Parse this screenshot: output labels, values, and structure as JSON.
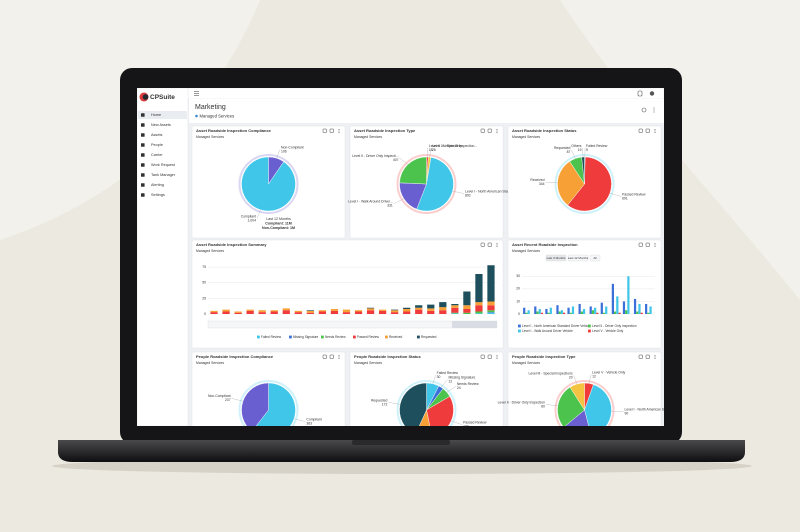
{
  "app": {
    "logo": "CPSuite",
    "nav": [
      "Home",
      "New Assets",
      "Assets",
      "People",
      "Carrier",
      "Work Request",
      "Tank Manager",
      "Alerting",
      "Settings"
    ]
  },
  "header": {
    "title": "Marketing",
    "subtitle": "Managed Services"
  },
  "widgets": [
    {
      "title": "Asset Roadside Inspection Compliance",
      "subtitle": "Managed Services",
      "chart_data": {
        "type": "pie",
        "categories": [
          "Non-Compliant",
          "Compliant"
        ],
        "values": [
          106,
          1004
        ],
        "value_labels": [
          "106",
          "1,004"
        ],
        "colors": [
          "#6a5fd0",
          "#3fc6e8"
        ],
        "annotations": [
          "Last 12 Months",
          "Compliant: 11M",
          "Non-Compliant: 1M"
        ]
      }
    },
    {
      "title": "Asset Roadside Inspection Type",
      "subtitle": "Managed Services",
      "chart_data": {
        "type": "pie",
        "categories": [
          "Level V - Vehicle Only",
          "Level III - Special Inspection...",
          "Level I - North American Standard...",
          "Level I - Walk Around Driver...",
          "Level II - Driver Only Inspecti..."
        ],
        "values": [
          18,
          26,
          892,
          331,
          407
        ],
        "colors": [
          "#ef3b3b",
          "#f5c342",
          "#3fc6e8",
          "#6a5fd0",
          "#4cc34c"
        ]
      }
    },
    {
      "title": "Asset Roadside Inspection Status",
      "subtitle": "Managed Services",
      "chart_data": {
        "type": "pie",
        "categories": [
          "Failed Review",
          "Passed Review",
          "Received",
          "Requested",
          "Others"
        ],
        "values": [
          5,
          691,
          344,
          87,
          19
        ],
        "colors": [
          "#3fc6e8",
          "#ef3b3b",
          "#f7a035",
          "#4cc34c",
          "#1e4f5c"
        ]
      }
    },
    {
      "title": "Asset Roadside Inspection Summary",
      "subtitle": "Managed Services",
      "chart_data": {
        "type": "stacked-bar",
        "ylim": [
          0,
          80
        ],
        "yticks": [
          0,
          25,
          50,
          75
        ],
        "grid": true,
        "series": [
          {
            "name": "Failed Review",
            "color": "#3fc6e8",
            "values": [
              0,
              0,
              0,
              0,
              0,
              0,
              0,
              0,
              0,
              0,
              0,
              0,
              0,
              0,
              0,
              0,
              0,
              0,
              0,
              0,
              1,
              0,
              1,
              2
            ]
          },
          {
            "name": "Missing Signature",
            "color": "#3b6fd9",
            "values": [
              0,
              0,
              0,
              0,
              0,
              0,
              0,
              0,
              0,
              0,
              0,
              0,
              0,
              0,
              0,
              0,
              0,
              0,
              0,
              0,
              0,
              0,
              0,
              1
            ]
          },
          {
            "name": "Needs Review",
            "color": "#4cc34c",
            "values": [
              0,
              0,
              0,
              0,
              0,
              0,
              0,
              0,
              0,
              0,
              0,
              0,
              0,
              0,
              0,
              0,
              0,
              0,
              0,
              0,
              1,
              2,
              3,
              3
            ]
          },
          {
            "name": "Passed Review",
            "color": "#ef3b3b",
            "values": [
              3,
              4,
              2,
              5,
              3,
              4,
              6,
              3,
              2,
              4,
              5,
              3,
              4,
              6,
              5,
              3,
              4,
              7,
              5,
              6,
              8,
              6,
              10,
              8
            ]
          },
          {
            "name": "Received",
            "color": "#f7a035",
            "values": [
              2,
              3,
              2,
              2,
              3,
              2,
              3,
              2,
              3,
              2,
              3,
              4,
              2,
              3,
              2,
              3,
              4,
              3,
              4,
              5,
              4,
              6,
              5,
              6
            ]
          },
          {
            "name": "Requested",
            "color": "#1e4f5c",
            "values": [
              0,
              0,
              0,
              0,
              0,
              0,
              0,
              0,
              1,
              0,
              0,
              0,
              0,
              1,
              0,
              1,
              2,
              4,
              6,
              8,
              2,
              22,
              45,
              58
            ]
          }
        ]
      }
    },
    {
      "title": "Asset Recent Roadside Inspection",
      "subtitle": "Managed Services",
      "buttons": [
        "Last 3 Months",
        "Last 12 Months",
        "All"
      ],
      "chart_data": {
        "type": "grouped-bar",
        "ylim": [
          0,
          35
        ],
        "yticks": [
          0,
          10,
          20,
          30
        ],
        "grid": true,
        "series": [
          {
            "name": "Level I - North American Standard Driver Vehicle",
            "color": "#3b6fd9",
            "values": [
              5,
              6,
              4,
              7,
              5,
              8,
              6,
              9,
              24,
              10,
              12,
              8
            ]
          },
          {
            "name": "Level II - Driver Only Inspection",
            "color": "#4cc34c",
            "values": [
              1,
              2,
              1,
              2,
              1,
              2,
              3,
              1,
              2,
              3,
              2,
              1
            ]
          },
          {
            "name": "Level I - Walk Around Driver Vehicle",
            "color": "#3fc6e8",
            "values": [
              3,
              4,
              5,
              3,
              6,
              4,
              5,
              6,
              14,
              30,
              8,
              6
            ]
          },
          {
            "name": "Level V - Vehicle Only",
            "color": "#ef3b3b",
            "values": [
              0,
              1,
              0,
              1,
              0,
              0,
              1,
              0,
              1,
              0,
              1,
              0
            ]
          }
        ]
      }
    },
    {
      "title": "People Roadside Inspection Compliance",
      "subtitle": "Managed Services",
      "chart_data": {
        "type": "pie",
        "categories": [
          "Compliant",
          "Non-Compliant"
        ],
        "values": [
          363,
          237
        ],
        "colors": [
          "#3fc6e8",
          "#6a5fd0"
        ]
      }
    },
    {
      "title": "People Roadside Inspection Status",
      "subtitle": "Managed Services",
      "chart_data": {
        "type": "pie",
        "categories": [
          "Failed Review",
          "Missing Signature",
          "Needs Review",
          "Passed Review",
          "Received",
          "Requested"
        ],
        "values": [
          30,
          12,
          24,
          120,
          40,
          172
        ],
        "colors": [
          "#3fc6e8",
          "#3b6fd9",
          "#4cc34c",
          "#ef3b3b",
          "#f7a035",
          "#1e4f5c"
        ]
      }
    },
    {
      "title": "People Roadside Inspection Type",
      "subtitle": "Managed Services",
      "chart_data": {
        "type": "pie",
        "categories": [
          "Level V - Vehicle Only",
          "Level I - North American Standard...",
          "Level I - Walk Around Driver Vehicle",
          "Level II - Driver Only Inspection",
          "Level III - Special Inspections"
        ],
        "values": [
          12,
          90,
          40,
          60,
          20
        ],
        "colors": [
          "#ef3b3b",
          "#3fc6e8",
          "#6a5fd0",
          "#4cc34c",
          "#f5c342"
        ]
      }
    }
  ]
}
